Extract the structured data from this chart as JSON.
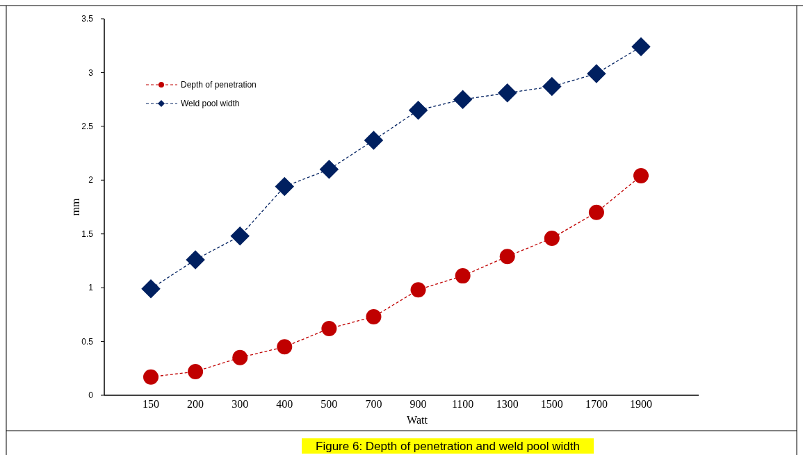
{
  "chart_data": {
    "type": "line",
    "title": "Figure 6: Depth of penetration and weld pool width",
    "xlabel": "Watt",
    "ylabel": "mm",
    "categories": [
      "150",
      "200",
      "300",
      "400",
      "500",
      "700",
      "900",
      "1100",
      "1300",
      "1500",
      "1700",
      "1900"
    ],
    "series": [
      {
        "name": "Depth of penetration",
        "color": "#c00000",
        "marker": "circle",
        "values": [
          0.17,
          0.22,
          0.35,
          0.45,
          0.62,
          0.73,
          0.98,
          1.11,
          1.29,
          1.46,
          1.7,
          2.04
        ]
      },
      {
        "name": "Weld pool width",
        "color": "#002060",
        "marker": "diamond",
        "values": [
          0.99,
          1.26,
          1.48,
          1.94,
          2.1,
          2.37,
          2.65,
          2.75,
          2.81,
          2.87,
          2.99,
          3.24
        ]
      }
    ],
    "ylim": [
      0,
      3.5
    ],
    "yticks": [
      0,
      0.5,
      1,
      1.5,
      2,
      2.5,
      3,
      3.5
    ],
    "line_style": "dashed",
    "legend": "top left",
    "grid": false
  }
}
